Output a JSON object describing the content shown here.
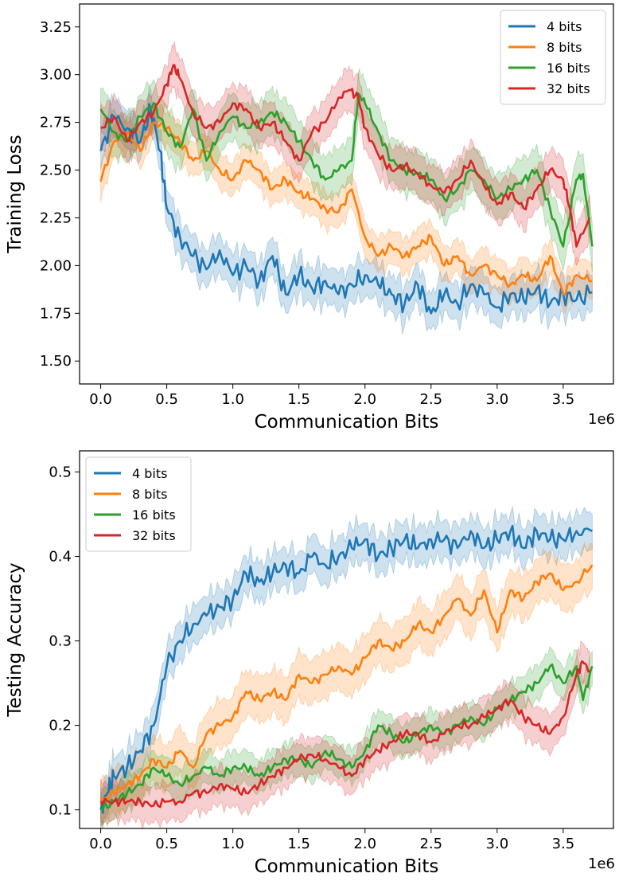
{
  "colors": {
    "4 bits": "#1f77b4",
    "8 bits": "#ff7f0e",
    "16 bits": "#2ca02c",
    "32 bits": "#d62728"
  },
  "chart_data": [
    {
      "type": "line",
      "title": "",
      "xlabel": "Communication Bits",
      "ylabel": "Training Loss",
      "x_offset_label": "1e6",
      "xlim": [
        -0.16,
        3.88
      ],
      "ylim": [
        1.38,
        3.37
      ],
      "xticks": [
        0.0,
        0.5,
        1.0,
        1.5,
        2.0,
        2.5,
        3.0,
        3.5
      ],
      "xtick_labels": [
        "0.0",
        "0.5",
        "1.0",
        "1.5",
        "2.0",
        "2.5",
        "3.0",
        "3.5"
      ],
      "yticks": [
        1.5,
        1.75,
        2.0,
        2.25,
        2.5,
        2.75,
        3.0,
        3.25
      ],
      "ytick_labels": [
        "1.50",
        "1.75",
        "2.00",
        "2.25",
        "2.50",
        "2.75",
        "3.00",
        "3.25"
      ],
      "legend": "top-right",
      "series": [
        {
          "name": "4 bits",
          "x": [
            0.0,
            0.1,
            0.2,
            0.3,
            0.38,
            0.45,
            0.5,
            0.6,
            0.7,
            0.8,
            0.9,
            1.0,
            1.1,
            1.2,
            1.3,
            1.4,
            1.5,
            1.6,
            1.7,
            1.8,
            1.9,
            2.0,
            2.1,
            2.2,
            2.3,
            2.4,
            2.5,
            2.6,
            2.7,
            2.8,
            2.9,
            3.0,
            3.1,
            3.2,
            3.3,
            3.4,
            3.5,
            3.6,
            3.72
          ],
          "y": [
            2.6,
            2.78,
            2.72,
            2.65,
            2.82,
            2.6,
            2.3,
            2.15,
            2.05,
            1.98,
            2.08,
            1.95,
            2.0,
            1.92,
            2.05,
            1.85,
            1.95,
            1.88,
            1.92,
            1.85,
            1.9,
            1.95,
            1.9,
            1.85,
            1.8,
            1.9,
            1.75,
            1.85,
            1.8,
            1.9,
            1.85,
            1.78,
            1.85,
            1.82,
            1.88,
            1.8,
            1.85,
            1.82,
            1.86
          ],
          "band": 0.11
        },
        {
          "name": "8 bits",
          "x": [
            0.0,
            0.1,
            0.2,
            0.3,
            0.4,
            0.5,
            0.6,
            0.7,
            0.8,
            0.9,
            1.0,
            1.1,
            1.2,
            1.3,
            1.4,
            1.5,
            1.6,
            1.7,
            1.8,
            1.9,
            2.0,
            2.1,
            2.2,
            2.3,
            2.4,
            2.5,
            2.6,
            2.7,
            2.8,
            2.9,
            3.0,
            3.1,
            3.2,
            3.3,
            3.4,
            3.5,
            3.6,
            3.72
          ],
          "y": [
            2.44,
            2.65,
            2.7,
            2.6,
            2.75,
            2.72,
            2.65,
            2.55,
            2.6,
            2.5,
            2.45,
            2.55,
            2.5,
            2.4,
            2.45,
            2.38,
            2.35,
            2.3,
            2.28,
            2.4,
            2.15,
            2.05,
            2.1,
            2.05,
            2.1,
            2.15,
            2.0,
            2.05,
            1.95,
            2.0,
            1.95,
            1.9,
            1.95,
            1.92,
            2.05,
            1.85,
            1.95,
            1.92
          ],
          "band": 0.1
        },
        {
          "name": "16 bits",
          "x": [
            0.0,
            0.1,
            0.2,
            0.3,
            0.4,
            0.5,
            0.6,
            0.7,
            0.8,
            0.9,
            1.0,
            1.1,
            1.2,
            1.3,
            1.4,
            1.5,
            1.6,
            1.7,
            1.8,
            1.9,
            1.95,
            2.0,
            2.1,
            2.2,
            2.3,
            2.4,
            2.5,
            2.6,
            2.7,
            2.8,
            2.9,
            3.0,
            3.1,
            3.2,
            3.3,
            3.4,
            3.5,
            3.6,
            3.65,
            3.72
          ],
          "y": [
            2.82,
            2.7,
            2.65,
            2.78,
            2.85,
            2.7,
            2.62,
            2.82,
            2.55,
            2.7,
            2.78,
            2.72,
            2.75,
            2.8,
            2.75,
            2.65,
            2.55,
            2.45,
            2.5,
            2.55,
            2.9,
            2.85,
            2.7,
            2.55,
            2.5,
            2.48,
            2.45,
            2.35,
            2.4,
            2.5,
            2.45,
            2.35,
            2.4,
            2.45,
            2.5,
            2.3,
            2.1,
            2.45,
            2.48,
            2.1
          ],
          "band": 0.13
        },
        {
          "name": "32 bits",
          "x": [
            0.0,
            0.1,
            0.2,
            0.3,
            0.4,
            0.5,
            0.55,
            0.6,
            0.7,
            0.8,
            0.9,
            1.0,
            1.1,
            1.2,
            1.3,
            1.4,
            1.5,
            1.6,
            1.7,
            1.8,
            1.88,
            1.95,
            2.0,
            2.1,
            2.2,
            2.3,
            2.4,
            2.5,
            2.6,
            2.7,
            2.8,
            2.9,
            3.0,
            3.1,
            3.2,
            3.3,
            3.4,
            3.5,
            3.55,
            3.6,
            3.7
          ],
          "y": [
            2.72,
            2.78,
            2.65,
            2.75,
            2.8,
            2.95,
            3.05,
            2.98,
            2.8,
            2.72,
            2.75,
            2.85,
            2.82,
            2.72,
            2.75,
            2.65,
            2.55,
            2.7,
            2.75,
            2.88,
            2.92,
            2.88,
            2.72,
            2.58,
            2.5,
            2.52,
            2.48,
            2.42,
            2.38,
            2.45,
            2.55,
            2.42,
            2.32,
            2.38,
            2.3,
            2.4,
            2.5,
            2.45,
            2.3,
            2.1,
            2.25
          ],
          "band": 0.12
        }
      ]
    },
    {
      "type": "line",
      "title": "",
      "xlabel": "Communication Bits",
      "ylabel": "Testing Accuracy",
      "x_offset_label": "1e6",
      "xlim": [
        -0.16,
        3.88
      ],
      "ylim": [
        0.078,
        0.525
      ],
      "xticks": [
        0.0,
        0.5,
        1.0,
        1.5,
        2.0,
        2.5,
        3.0,
        3.5
      ],
      "xtick_labels": [
        "0.0",
        "0.5",
        "1.0",
        "1.5",
        "2.0",
        "2.5",
        "3.0",
        "3.5"
      ],
      "yticks": [
        0.1,
        0.2,
        0.3,
        0.4,
        0.5
      ],
      "ytick_labels": [
        "0.1",
        "0.2",
        "0.3",
        "0.4",
        "0.5"
      ],
      "legend": "top-left",
      "series": [
        {
          "name": "4 bits",
          "x": [
            0.0,
            0.05,
            0.1,
            0.2,
            0.3,
            0.4,
            0.5,
            0.6,
            0.7,
            0.8,
            0.9,
            1.0,
            1.1,
            1.2,
            1.3,
            1.4,
            1.5,
            1.6,
            1.7,
            1.8,
            1.9,
            2.0,
            2.1,
            2.2,
            2.3,
            2.4,
            2.5,
            2.6,
            2.7,
            2.8,
            2.9,
            3.0,
            3.1,
            3.2,
            3.3,
            3.4,
            3.5,
            3.6,
            3.72
          ],
          "y": [
            0.1,
            0.12,
            0.14,
            0.15,
            0.17,
            0.2,
            0.27,
            0.3,
            0.32,
            0.33,
            0.34,
            0.35,
            0.38,
            0.37,
            0.38,
            0.39,
            0.38,
            0.4,
            0.39,
            0.4,
            0.41,
            0.42,
            0.4,
            0.41,
            0.42,
            0.41,
            0.42,
            0.42,
            0.41,
            0.43,
            0.41,
            0.42,
            0.43,
            0.41,
            0.43,
            0.42,
            0.42,
            0.43,
            0.43
          ],
          "band": 0.025
        },
        {
          "name": "8 bits",
          "x": [
            0.0,
            0.1,
            0.2,
            0.3,
            0.4,
            0.5,
            0.6,
            0.7,
            0.8,
            0.9,
            1.0,
            1.1,
            1.2,
            1.3,
            1.4,
            1.5,
            1.6,
            1.7,
            1.8,
            1.9,
            2.0,
            2.1,
            2.2,
            2.3,
            2.4,
            2.5,
            2.6,
            2.7,
            2.8,
            2.9,
            3.0,
            3.1,
            3.2,
            3.3,
            3.4,
            3.5,
            3.6,
            3.72
          ],
          "y": [
            0.11,
            0.12,
            0.13,
            0.14,
            0.16,
            0.15,
            0.17,
            0.15,
            0.19,
            0.2,
            0.21,
            0.24,
            0.23,
            0.24,
            0.23,
            0.26,
            0.25,
            0.26,
            0.27,
            0.26,
            0.28,
            0.3,
            0.29,
            0.3,
            0.32,
            0.31,
            0.33,
            0.35,
            0.33,
            0.36,
            0.31,
            0.36,
            0.35,
            0.37,
            0.38,
            0.36,
            0.37,
            0.39
          ],
          "band": 0.03
        },
        {
          "name": "16 bits",
          "x": [
            0.0,
            0.1,
            0.2,
            0.3,
            0.4,
            0.5,
            0.6,
            0.7,
            0.8,
            0.9,
            1.0,
            1.1,
            1.2,
            1.3,
            1.4,
            1.5,
            1.6,
            1.7,
            1.8,
            1.9,
            2.0,
            2.1,
            2.2,
            2.3,
            2.4,
            2.5,
            2.6,
            2.7,
            2.8,
            2.9,
            3.0,
            3.1,
            3.2,
            3.3,
            3.4,
            3.5,
            3.6,
            3.65,
            3.72
          ],
          "y": [
            0.1,
            0.11,
            0.12,
            0.13,
            0.15,
            0.14,
            0.13,
            0.14,
            0.15,
            0.14,
            0.15,
            0.15,
            0.14,
            0.15,
            0.16,
            0.16,
            0.15,
            0.17,
            0.16,
            0.15,
            0.17,
            0.2,
            0.19,
            0.18,
            0.19,
            0.2,
            0.19,
            0.2,
            0.21,
            0.2,
            0.22,
            0.23,
            0.24,
            0.25,
            0.27,
            0.25,
            0.27,
            0.23,
            0.27
          ],
          "band": 0.022
        },
        {
          "name": "32 bits",
          "x": [
            0.0,
            0.1,
            0.2,
            0.3,
            0.4,
            0.5,
            0.6,
            0.7,
            0.8,
            0.9,
            1.0,
            1.1,
            1.2,
            1.3,
            1.4,
            1.5,
            1.6,
            1.7,
            1.8,
            1.9,
            2.0,
            2.1,
            2.2,
            2.3,
            2.4,
            2.5,
            2.6,
            2.7,
            2.8,
            2.9,
            3.0,
            3.1,
            3.2,
            3.3,
            3.4,
            3.5,
            3.6,
            3.65,
            3.7
          ],
          "y": [
            0.11,
            0.11,
            0.11,
            0.11,
            0.105,
            0.11,
            0.11,
            0.12,
            0.12,
            0.13,
            0.125,
            0.12,
            0.13,
            0.14,
            0.15,
            0.16,
            0.165,
            0.16,
            0.15,
            0.14,
            0.16,
            0.17,
            0.18,
            0.19,
            0.19,
            0.18,
            0.19,
            0.2,
            0.2,
            0.21,
            0.22,
            0.23,
            0.21,
            0.2,
            0.19,
            0.21,
            0.26,
            0.275,
            0.265
          ],
          "band": 0.025
        }
      ]
    }
  ]
}
